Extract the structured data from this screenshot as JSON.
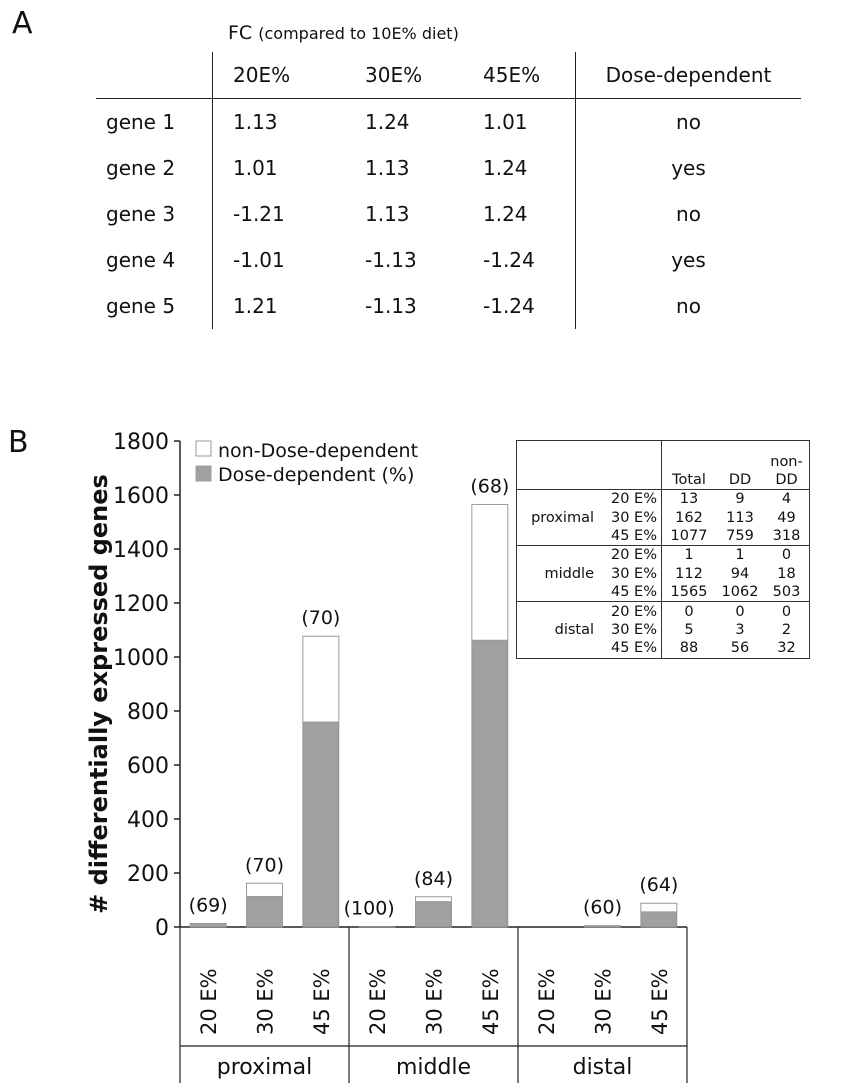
{
  "panel_a": {
    "letter": "A",
    "title_main": "FC",
    "title_sub": "(compared to 10E% diet)",
    "headers": [
      "20E%",
      "30E%",
      "45E%",
      "Dose-dependent"
    ],
    "rows": [
      {
        "label": "gene 1",
        "v1": "1.13",
        "v2": "1.24",
        "v3": "1.01",
        "dd": "no"
      },
      {
        "label": "gene 2",
        "v1": "1.01",
        "v2": "1.13",
        "v3": "1.24",
        "dd": "yes"
      },
      {
        "label": "gene 3",
        "v1": "-1.21",
        "v2": "1.13",
        "v3": "1.24",
        "dd": "no"
      },
      {
        "label": "gene 4",
        "v1": "-1.01",
        "v2": "-1.13",
        "v3": "-1.24",
        "dd": "yes"
      },
      {
        "label": "gene 5",
        "v1": "1.21",
        "v2": "-1.13",
        "v3": "-1.24",
        "dd": "no"
      }
    ]
  },
  "panel_b": {
    "letter": "B",
    "table": {
      "headers": {
        "total": "Total",
        "dd": "DD",
        "non_dd_1": "non-",
        "non_dd_2": "DD"
      },
      "groups": [
        {
          "name": "proximal",
          "rows": [
            {
              "energy": "20 E%",
              "total": "13",
              "dd": "9",
              "non_dd": "4"
            },
            {
              "energy": "30 E%",
              "total": "162",
              "dd": "113",
              "non_dd": "49"
            },
            {
              "energy": "45 E%",
              "total": "1077",
              "dd": "759",
              "non_dd": "318"
            }
          ]
        },
        {
          "name": "middle",
          "rows": [
            {
              "energy": "20 E%",
              "total": "1",
              "dd": "1",
              "non_dd": "0"
            },
            {
              "energy": "30 E%",
              "total": "112",
              "dd": "94",
              "non_dd": "18"
            },
            {
              "energy": "45 E%",
              "total": "1565",
              "dd": "1062",
              "non_dd": "503"
            }
          ]
        },
        {
          "name": "distal",
          "rows": [
            {
              "energy": "20 E%",
              "total": "0",
              "dd": "0",
              "non_dd": "0"
            },
            {
              "energy": "30 E%",
              "total": "5",
              "dd": "3",
              "non_dd": "2"
            },
            {
              "energy": "45 E%",
              "total": "88",
              "dd": "56",
              "non_dd": "32"
            }
          ]
        }
      ]
    }
  },
  "chart_data": {
    "type": "bar",
    "stacked": true,
    "ylabel": "# differentially expressed genes",
    "ylim": [
      0,
      1800
    ],
    "yticks": [
      0,
      200,
      400,
      600,
      800,
      1000,
      1200,
      1400,
      1600,
      1800
    ],
    "grid": false,
    "legend": "top-left",
    "groups": [
      "proximal",
      "middle",
      "distal"
    ],
    "categories": [
      "20 E%",
      "30 E%",
      "45 E%",
      "20 E%",
      "30 E%",
      "45 E%",
      "20 E%",
      "30 E%",
      "45 E%"
    ],
    "series": [
      {
        "name": "Dose-dependent (%)",
        "color": "#a0a0a0",
        "values": [
          9,
          113,
          759,
          1,
          94,
          1062,
          0,
          3,
          56
        ]
      },
      {
        "name": "non-Dose-dependent",
        "color": "#ffffff",
        "values": [
          4,
          49,
          318,
          0,
          18,
          503,
          0,
          2,
          32
        ]
      }
    ],
    "bar_labels": [
      "(69)",
      "(70)",
      "(70)",
      "(100)",
      "(84)",
      "(68)",
      "",
      "(60)",
      "(64)"
    ]
  }
}
